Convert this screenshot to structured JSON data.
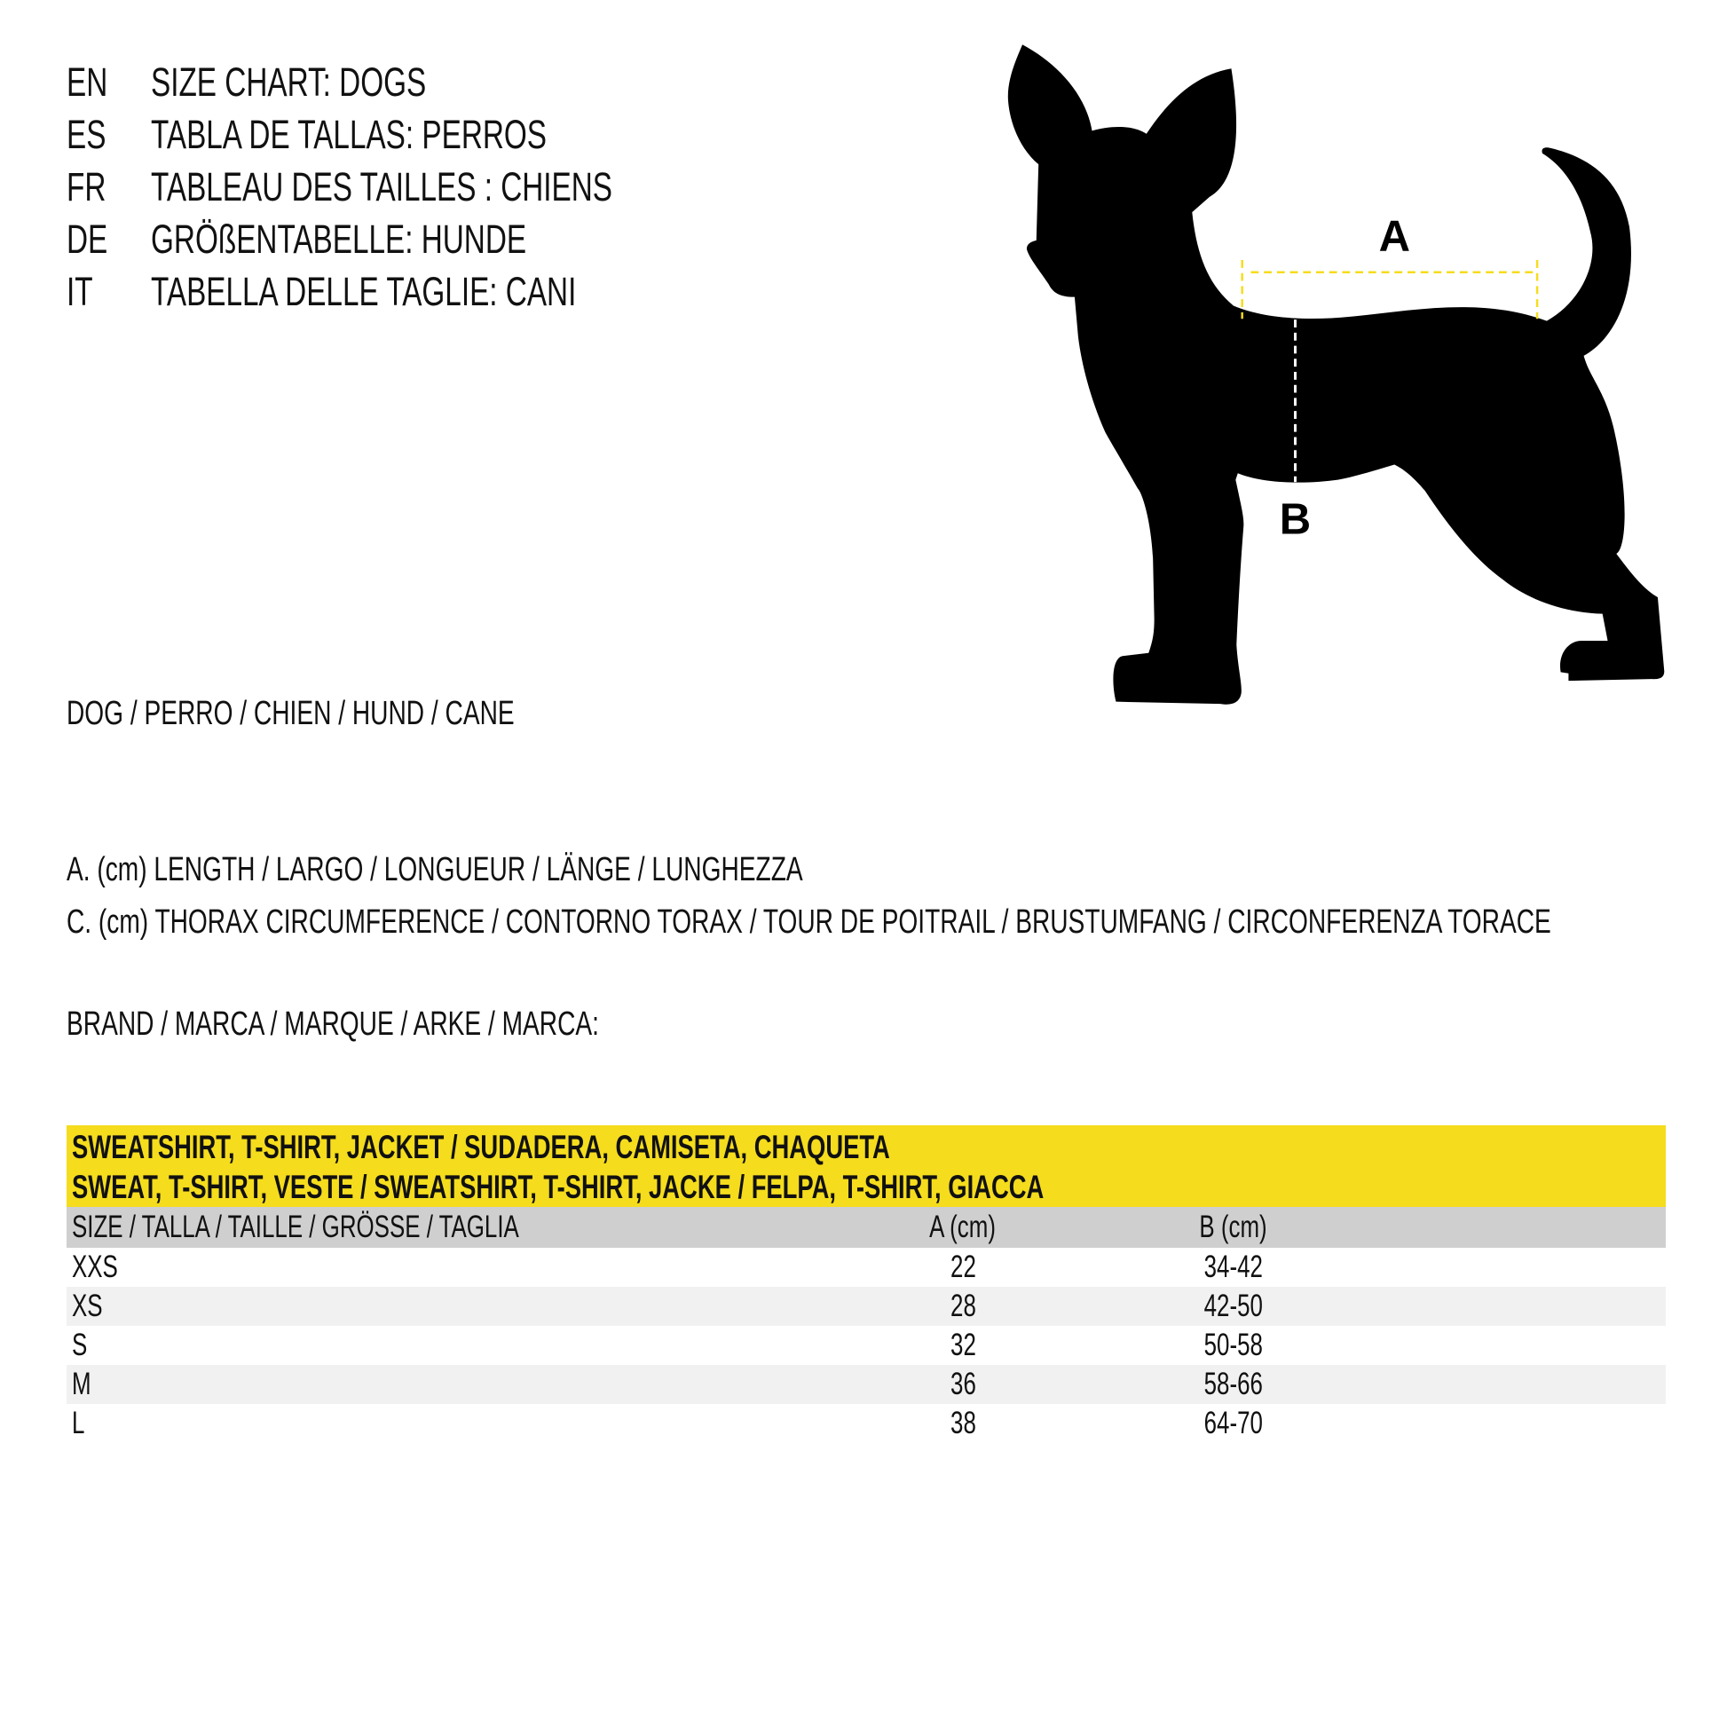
{
  "titles": [
    {
      "lang": "EN",
      "text": "SIZE CHART: DOGS"
    },
    {
      "lang": "ES",
      "text": "TABLA DE TALLAS: PERROS"
    },
    {
      "lang": "FR",
      "text": "TABLEAU DES TAILLES : CHIENS"
    },
    {
      "lang": "DE",
      "text": "GRÖßENTABELLE: HUNDE"
    },
    {
      "lang": "IT",
      "text": "TABELLA DELLE TAGLIE: CANI"
    }
  ],
  "animal": "DOG / PERRO / CHIEN / HUND / CANE",
  "measure_a": "A. (cm) LENGTH / LARGO / LONGUEUR / LÄNGE / LUNGHEZZA",
  "measure_c": "C. (cm) THORAX CIRCUMFERENCE / CONTORNO TORAX / TOUR DE POITRAIL / BRUSTUMFANG / CIRCONFERENZA TORACE",
  "brand": "BRAND / MARCA / MARQUE / ARKE / MARCA:",
  "illustration": {
    "label_a": "A",
    "label_b": "B",
    "accent": "#f5dc1d"
  },
  "table": {
    "title_lines": [
      "SWEATSHIRT, T-SHIRT, JACKET / SUDADERA, CAMISETA, CHAQUETA",
      "SWEAT, T-SHIRT, VESTE / SWEATSHIRT, T-SHIRT, JACKE / FELPA, T-SHIRT, GIACCA"
    ],
    "headers": [
      "SIZE / TALLA / TAILLE / GRÖSSE / TAGLIA",
      "A (cm)",
      "B (cm)"
    ],
    "rows": [
      [
        "XXS",
        "22",
        "34-42"
      ],
      [
        "XS",
        "28",
        "42-50"
      ],
      [
        "S",
        "32",
        "50-58"
      ],
      [
        "M",
        "36",
        "58-66"
      ],
      [
        "L",
        "38",
        "64-70"
      ]
    ]
  }
}
